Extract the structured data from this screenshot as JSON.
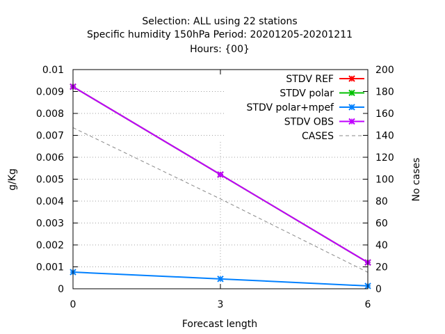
{
  "chart_data": {
    "type": "line",
    "title_lines": [
      "Selection: ALL using     22 stations",
      "Specific humidity 150hPa   Period: 20201205-20201211",
      "Hours: {00}"
    ],
    "xlabel": "Forecast length",
    "ylabel": "g/Kg",
    "y2label": "No cases",
    "x": [
      0,
      3,
      6
    ],
    "xlim": [
      0,
      6
    ],
    "ylim": [
      0,
      0.01
    ],
    "y2lim": [
      0,
      200
    ],
    "x_ticks": [
      "0",
      "3",
      "6"
    ],
    "y_ticks": [
      "0",
      "0.001",
      "0.002",
      "0.003",
      "0.004",
      "0.005",
      "0.006",
      "0.007",
      "0.008",
      "0.009",
      "0.01"
    ],
    "y2_ticks": [
      "0",
      "20",
      "40",
      "60",
      "80",
      "100",
      "120",
      "140",
      "160",
      "180",
      "200"
    ],
    "grid": true,
    "legend_position": "top-right",
    "series": [
      {
        "name": "STDV REF",
        "axis": "y",
        "color": "#ff0000",
        "marker": "x",
        "values": [
          0.00922,
          0.00521,
          0.0012
        ]
      },
      {
        "name": "STDV polar",
        "axis": "y",
        "color": "#00c000",
        "marker": "x",
        "values": [
          0.00922,
          0.00521,
          0.0012
        ]
      },
      {
        "name": "STDV polar+mpef",
        "axis": "y",
        "color": "#0080ff",
        "marker": "x",
        "values": [
          0.00076,
          0.00045,
          0.00013
        ]
      },
      {
        "name": "STDV OBS",
        "axis": "y",
        "color": "#c000ff",
        "marker": "x",
        "values": [
          0.00922,
          0.00521,
          0.0012
        ]
      },
      {
        "name": "CASES",
        "axis": "y2",
        "color": "#888888",
        "marker": "none",
        "dashed": true,
        "values": [
          147,
          82,
          15
        ]
      }
    ]
  }
}
